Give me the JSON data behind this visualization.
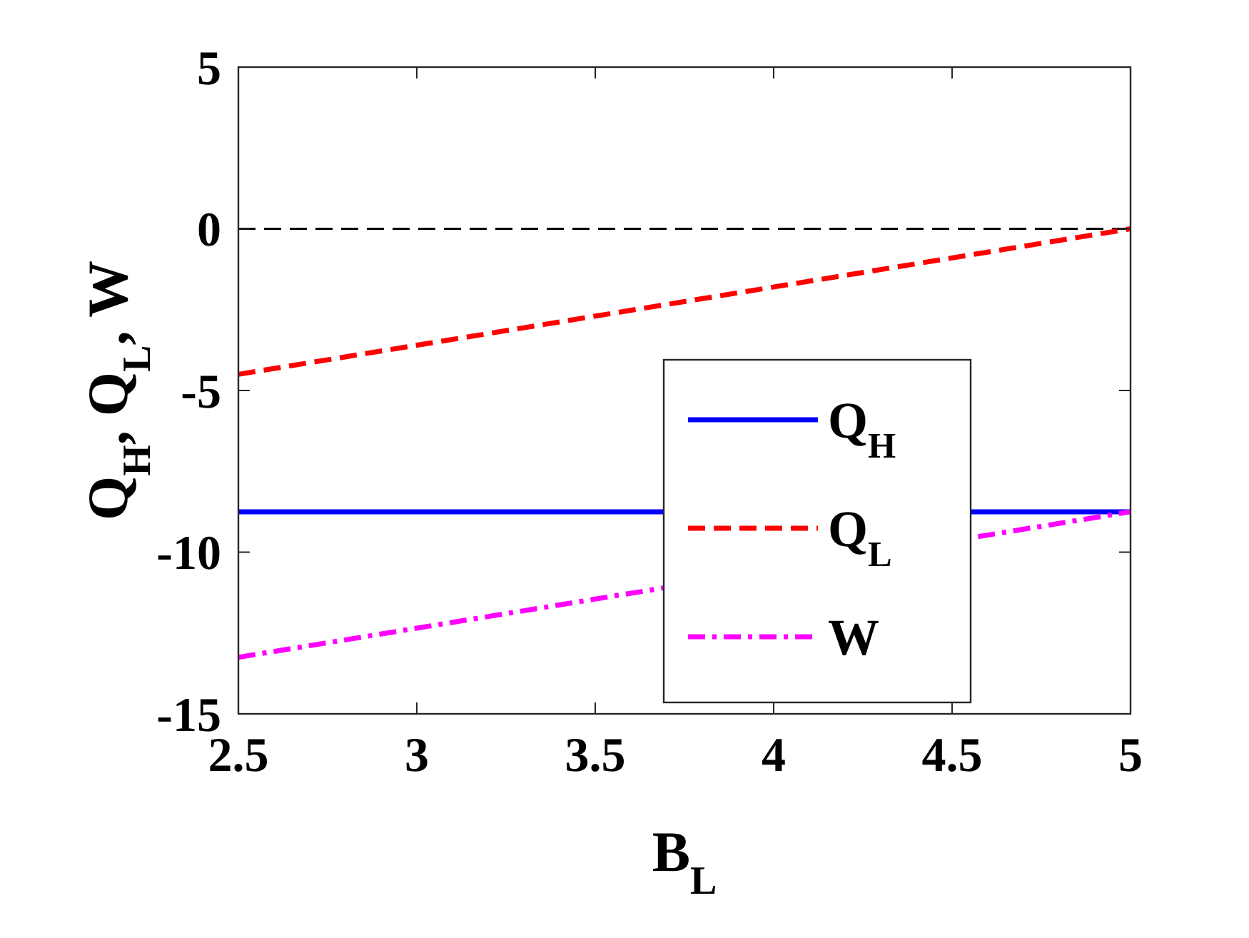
{
  "chart_data": {
    "type": "line",
    "xlabel": "B$_{L}$",
    "ylabel": "Q$_{H}$, Q$_{L}$, W",
    "x": [
      2.5,
      5
    ],
    "series": [
      {
        "name": "Q$_{H}$",
        "color": "#0000ff",
        "values": [
          -8.75,
          -8.75
        ],
        "line_style": "solid"
      },
      {
        "name": "Q$_{L}$",
        "color": "#ff0000",
        "values": [
          -4.5,
          0
        ],
        "line_style": "dashed"
      },
      {
        "name": "W",
        "color": "#ff00ff",
        "values": [
          -13.25,
          -8.75
        ],
        "line_style": "dashdot"
      }
    ],
    "ref_lines": [
      {
        "axis": "y",
        "value": 0,
        "label": null,
        "color": "#000000",
        "line_style": "dashed"
      }
    ],
    "xlim": [
      2.5,
      5
    ],
    "xticks": [
      2.5,
      3,
      3.5,
      4,
      4.5,
      5
    ],
    "ylim": [
      -15,
      5
    ],
    "yticks": [
      -15,
      -10,
      -5,
      0,
      5
    ],
    "grid": false,
    "legend": "right"
  }
}
